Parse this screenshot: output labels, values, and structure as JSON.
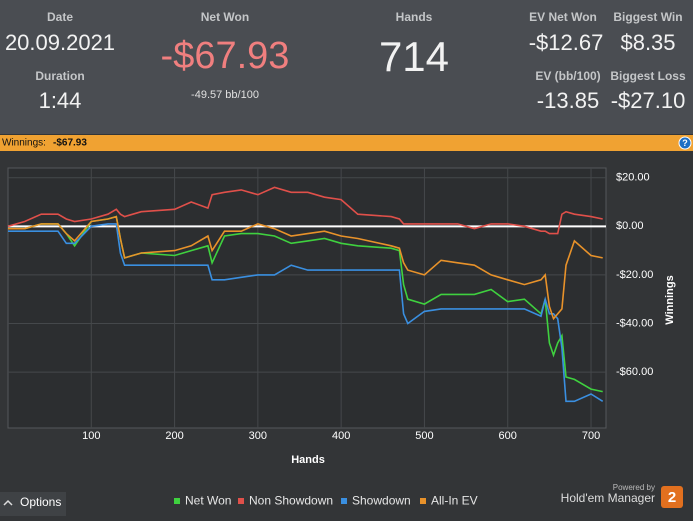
{
  "header": {
    "date_label": "Date",
    "date": "20.09.2021",
    "duration_label": "Duration",
    "duration": "1:44",
    "net_won_label": "Net Won",
    "net_won": "-$67.93",
    "bb_per_100": "-49.57 bb/100",
    "hands_label": "Hands",
    "hands": "714",
    "ev_net_won_label": "EV Net Won",
    "ev_net_won": "-$12.67",
    "biggest_win_label": "Biggest Win",
    "biggest_win": "$8.35",
    "ev_bb_label": "EV (bb/100)",
    "ev_bb": "-13.85",
    "biggest_loss_label": "Biggest Loss",
    "biggest_loss": "-$27.10"
  },
  "winnings_bar": {
    "label": "Winnings:",
    "value": "-$67.93",
    "help": "?"
  },
  "chart_data": {
    "type": "line",
    "x_label": "Hands",
    "y_label": "Winnings",
    "x": [
      0,
      20,
      40,
      60,
      70,
      80,
      100,
      120,
      130,
      135,
      140,
      160,
      200,
      220,
      240,
      245,
      260,
      280,
      300,
      320,
      340,
      360,
      380,
      400,
      420,
      460,
      470,
      475,
      480,
      500,
      520,
      540,
      560,
      580,
      600,
      620,
      640,
      645,
      650,
      655,
      660,
      665,
      670,
      680,
      700,
      714
    ],
    "series": [
      {
        "name": "Net Won",
        "color": "#3fd13f",
        "values": [
          -1,
          -1,
          1,
          1,
          -3,
          -8,
          2,
          3,
          4,
          -5,
          -13,
          -11,
          -12,
          -10,
          -8,
          -15,
          -4,
          -3,
          -3,
          -4,
          -7,
          -6,
          -5,
          -7,
          -8,
          -9,
          -10,
          -24,
          -30,
          -32,
          -28,
          -28,
          -28,
          -26,
          -31,
          -30,
          -36,
          -30,
          -48,
          -53,
          -48,
          -45,
          -62,
          -63,
          -67,
          -68
        ]
      },
      {
        "name": "Non Showdown",
        "color": "#e0504a",
        "values": [
          0,
          2,
          5,
          5,
          3,
          2,
          3,
          5,
          7,
          5,
          4,
          6,
          7,
          10,
          7.5,
          13,
          14,
          15,
          13,
          16,
          14,
          14,
          12,
          11,
          5,
          4,
          3,
          1,
          1,
          1,
          1,
          1,
          -1,
          1,
          1,
          0,
          -2,
          -2,
          -3,
          -3,
          -3,
          5,
          6,
          5,
          4,
          3
        ]
      },
      {
        "name": "Showdown",
        "color": "#3a8fe0",
        "values": [
          -2,
          -2,
          -2,
          -2,
          -7,
          -7,
          0,
          1,
          1,
          -11,
          -16,
          -16,
          -16,
          -16,
          -16,
          -22,
          -22,
          -21,
          -20,
          -20,
          -16,
          -18,
          -18,
          -18,
          -18,
          -18,
          -18,
          -36,
          -40,
          -35,
          -34,
          -34,
          -34,
          -34,
          -34,
          -34,
          -37,
          -30,
          -36,
          -36,
          -38,
          -50,
          -72,
          -72,
          -69,
          -72
        ]
      },
      {
        "name": "All-In EV",
        "color": "#e8922a",
        "values": [
          -1,
          -1,
          1,
          1,
          -3,
          -6,
          2,
          3,
          4,
          -5,
          -13,
          -11,
          -10,
          -8,
          -4,
          -10,
          -2,
          -2,
          1,
          -1,
          -4,
          -3,
          -2,
          -4,
          -5,
          -8,
          -9,
          -15,
          -18,
          -20,
          -14,
          -15,
          -16,
          -20,
          -22,
          -24,
          -22,
          -20,
          -33,
          -38,
          -36,
          -34,
          -16,
          -6,
          -12,
          -13
        ]
      }
    ],
    "xlim": [
      0,
      718
    ],
    "xticks": [
      100,
      200,
      300,
      400,
      500,
      600,
      700
    ],
    "ylim": [
      -83,
      24
    ],
    "yticks": [
      {
        "value": 20,
        "label": "$20.00"
      },
      {
        "value": 0,
        "label": "$0.00"
      },
      {
        "value": -20,
        "label": "-$20.00"
      },
      {
        "value": -40,
        "label": "-$40.00"
      },
      {
        "value": -60,
        "label": "-$60.00"
      }
    ],
    "grid": true,
    "zero_line": true,
    "legend": "bottom"
  },
  "footer": {
    "options": "Options",
    "powered_by": "Powered by",
    "brand": "Hold'em Manager",
    "badge": "2"
  }
}
